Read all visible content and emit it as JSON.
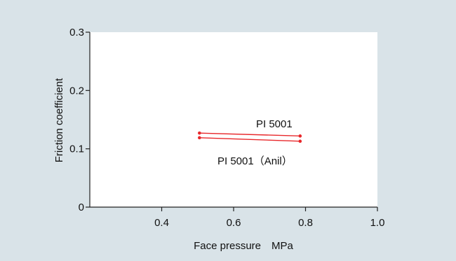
{
  "chart_data": {
    "type": "line",
    "xlabel": "Face pressure　MPa",
    "ylabel": "Friction coefficient",
    "xlim": [
      0.2,
      1.0
    ],
    "ylim": [
      0,
      0.3
    ],
    "x_ticks": [
      "0.4",
      "0.6",
      "0.8",
      "1.0"
    ],
    "x_tick_values": [
      0.4,
      0.6,
      0.8,
      1.0
    ],
    "y_ticks": [
      "0",
      "0.1",
      "0.2",
      "0.3"
    ],
    "y_tick_values": [
      0,
      0.1,
      0.2,
      0.3
    ],
    "grid": false,
    "series": [
      {
        "name": "PI 5001",
        "x": [
          0.505,
          0.785
        ],
        "y": [
          0.127,
          0.122
        ],
        "color": "#e8282b"
      },
      {
        "name": "PI 5001（Anil）",
        "x": [
          0.505,
          0.785
        ],
        "y": [
          0.119,
          0.113
        ],
        "color": "#e8282b"
      }
    ]
  }
}
